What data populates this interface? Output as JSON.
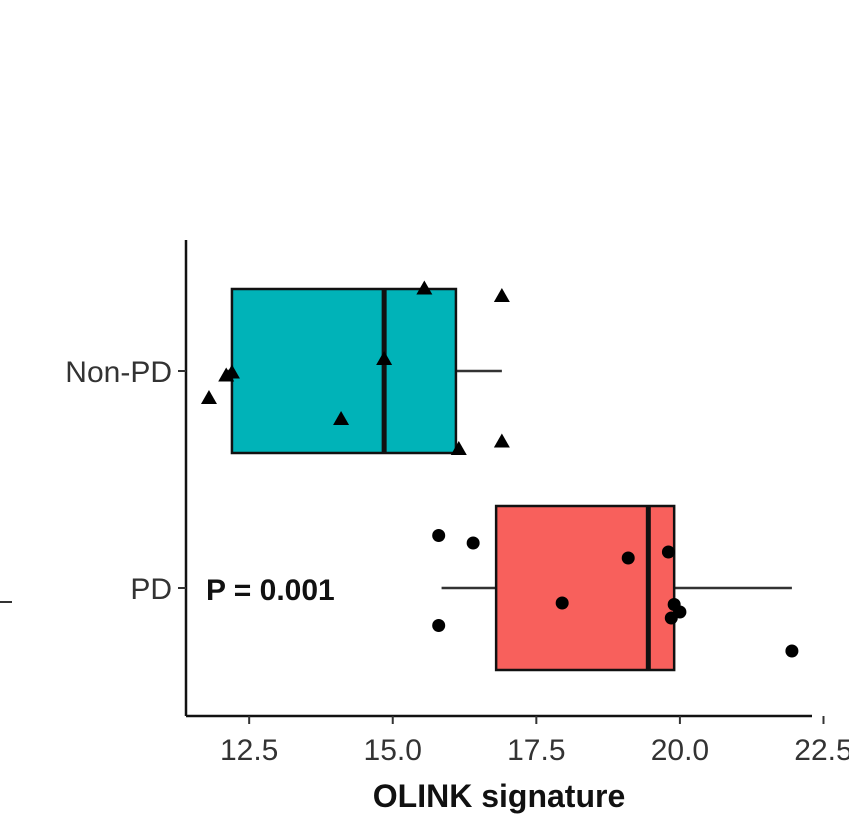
{
  "chart_data": {
    "type": "box",
    "orientation": "horizontal",
    "xlabel": "OLINK signature",
    "x_ticks": [
      12.5,
      15.0,
      17.5,
      20.0,
      22.5
    ],
    "x_tick_labels": [
      "12.5",
      "15.0",
      "17.5",
      "20.0",
      "22.5"
    ],
    "xlim": [
      11.4,
      22.3
    ],
    "categories": [
      "Non-PD",
      "PD"
    ],
    "annotation": "P = 0.001",
    "colors": {
      "Non-PD": "#00b3b8",
      "PD": "#f8605c"
    },
    "series": [
      {
        "name": "Non-PD",
        "marker": "triangle",
        "box": {
          "whisker_low": 12.1,
          "q1": 12.2,
          "median": 14.85,
          "q3": 16.1,
          "whisker_high": 16.9
        },
        "points": [
          {
            "x": 11.8,
            "offset": -0.18
          },
          {
            "x": 12.1,
            "offset": -0.03
          },
          {
            "x": 12.2,
            "offset": -0.01
          },
          {
            "x": 14.1,
            "offset": -0.32
          },
          {
            "x": 14.85,
            "offset": 0.08
          },
          {
            "x": 15.55,
            "offset": 0.55
          },
          {
            "x": 16.15,
            "offset": -0.52
          },
          {
            "x": 16.9,
            "offset": 0.5
          },
          {
            "x": 16.9,
            "offset": -0.47
          }
        ]
      },
      {
        "name": "PD",
        "marker": "circle",
        "box": {
          "whisker_low": 15.85,
          "q1": 16.8,
          "median": 19.45,
          "q3": 19.9,
          "whisker_high": 21.95
        },
        "points": [
          {
            "x": 15.8,
            "offset": 0.35
          },
          {
            "x": 16.4,
            "offset": 0.3
          },
          {
            "x": 17.95,
            "offset": -0.1
          },
          {
            "x": 19.1,
            "offset": 0.2
          },
          {
            "x": 19.8,
            "offset": 0.24
          },
          {
            "x": 19.9,
            "offset": -0.11
          },
          {
            "x": 19.85,
            "offset": -0.2
          },
          {
            "x": 20.0,
            "offset": -0.16
          },
          {
            "x": 15.8,
            "offset": -0.25
          },
          {
            "x": 21.95,
            "offset": -0.42
          }
        ]
      }
    ]
  }
}
